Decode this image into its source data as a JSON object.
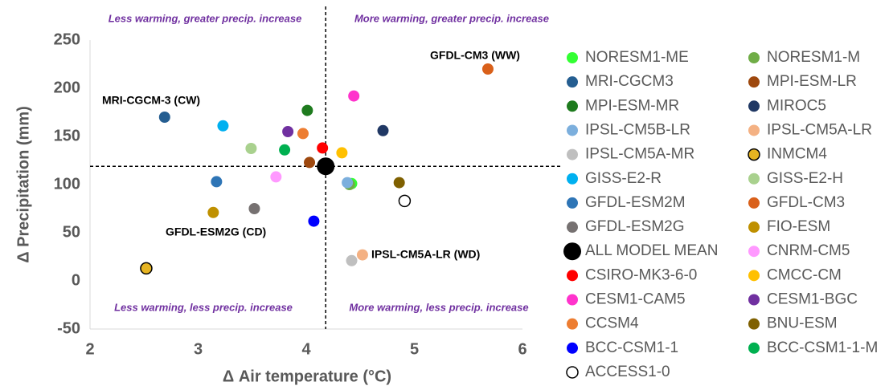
{
  "chart_data": {
    "type": "scatter",
    "x_label": "Δ Air temperature (°C)",
    "y_label": "Δ Precipitation (mm)",
    "xlim": [
      2,
      6
    ],
    "xticks": [
      2,
      3,
      4,
      5,
      6
    ],
    "ylim": [
      -50,
      250
    ],
    "yticks": [
      -50,
      0,
      50,
      100,
      150,
      200,
      250
    ],
    "reference_lines": {
      "x": 4.18,
      "y": 119
    },
    "quadrant_labels": [
      "Less warming, greater precip. increase",
      "More warming, greater precip. increase",
      "Less warming, less precip. increase",
      "More warming, less precip. increase"
    ],
    "annotations": [
      "GFDL-CM3 (WW)",
      "MRI-CGCM-3 (CW)",
      "GFDL-ESM2G (CD)",
      "IPSL-CM5A-LR (WD)"
    ],
    "series": [
      {
        "name": "NORESM1-ME",
        "color": "#33ff33",
        "x": [
          4.42
        ],
        "values": [
          101
        ]
      },
      {
        "name": "NORESM1-M",
        "color": "#70ad47",
        "x": [
          4.4
        ],
        "values": [
          100
        ]
      },
      {
        "name": "MRI-CGCM3",
        "color": "#255e91",
        "x": [
          2.69
        ],
        "values": [
          170
        ]
      },
      {
        "name": "MPI-ESM-LR",
        "color": "#9e480e",
        "x": [
          4.03
        ],
        "values": [
          123
        ]
      },
      {
        "name": "MPI-ESM-MR",
        "color": "#1e7b1e",
        "x": [
          4.01
        ],
        "values": [
          177
        ]
      },
      {
        "name": "MIROC5",
        "color": "#203864",
        "x": [
          4.71
        ],
        "values": [
          156
        ]
      },
      {
        "name": "IPSL-CM5B-LR",
        "color": "#7cafdd",
        "x": [
          4.38
        ],
        "values": [
          102
        ]
      },
      {
        "name": "IPSL-CM5A-LR",
        "color": "#f4b183",
        "x": [
          4.52
        ],
        "values": [
          27
        ]
      },
      {
        "name": "IPSL-CM5A-MR",
        "color": "#bfbfbf",
        "x": [
          4.42
        ],
        "values": [
          21
        ]
      },
      {
        "name": "INMCM4",
        "color": "#e6b422",
        "edgecolor": "#000000",
        "x": [
          2.52
        ],
        "values": [
          13
        ]
      },
      {
        "name": "GISS-E2-R",
        "color": "#00b0f0",
        "x": [
          3.23
        ],
        "values": [
          161
        ]
      },
      {
        "name": "GISS-E2-H",
        "color": "#a9d18e",
        "x": [
          3.49
        ],
        "values": [
          137.5
        ]
      },
      {
        "name": "GFDL-ESM2M",
        "color": "#2e75b6",
        "x": [
          3.17
        ],
        "values": [
          103
        ]
      },
      {
        "name": "GFDL-CM3",
        "color": "#d9601a",
        "x": [
          5.68
        ],
        "values": [
          220
        ]
      },
      {
        "name": "GFDL-ESM2G",
        "color": "#767171",
        "x": [
          3.52
        ],
        "values": [
          75
        ]
      },
      {
        "name": "FIO-ESM",
        "color": "#bf9000",
        "x": [
          3.14
        ],
        "values": [
          71
        ]
      },
      {
        "name": "ALL MODEL MEAN",
        "color": "#000000",
        "size": 11,
        "x": [
          4.18
        ],
        "values": [
          119
        ]
      },
      {
        "name": "CNRM-CM5",
        "color": "#ff99ff",
        "x": [
          3.72
        ],
        "values": [
          108
        ]
      },
      {
        "name": "CSIRO-MK3-6-0",
        "color": "#ff0000",
        "x": [
          4.15
        ],
        "values": [
          138
        ]
      },
      {
        "name": "CMCC-CM",
        "color": "#ffc000",
        "x": [
          4.33
        ],
        "values": [
          133
        ]
      },
      {
        "name": "CESM1-CAM5",
        "color": "#ff33cc",
        "x": [
          4.44
        ],
        "values": [
          192
        ]
      },
      {
        "name": "CESM1-BGC",
        "color": "#7030a0",
        "x": [
          3.83
        ],
        "values": [
          155
        ]
      },
      {
        "name": "CCSM4",
        "color": "#ed7d31",
        "x": [
          3.97
        ],
        "values": [
          153
        ]
      },
      {
        "name": "BNU-ESM",
        "color": "#7f6000",
        "x": [
          4.86
        ],
        "values": [
          102
        ]
      },
      {
        "name": "BCC-CSM1-1",
        "color": "#0000ff",
        "x": [
          4.07
        ],
        "values": [
          62
        ]
      },
      {
        "name": "BCC-CSM1-1-M",
        "color": "#00b050",
        "x": [
          3.8
        ],
        "values": [
          136
        ]
      },
      {
        "name": "ACCESS1-0",
        "color": "#ffffff",
        "edgecolor": "#000000",
        "x": [
          4.91
        ],
        "values": [
          83
        ]
      }
    ]
  }
}
